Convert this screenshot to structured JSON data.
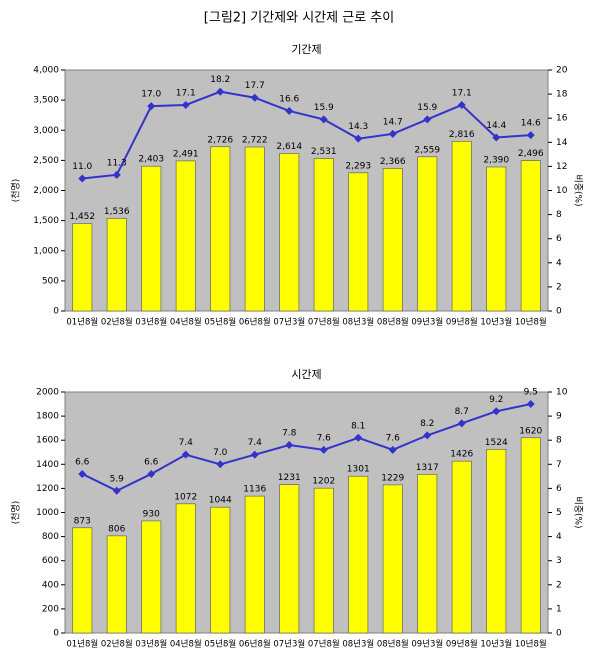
{
  "title": "[그림2] 기간제와 시간제 근로 추이",
  "chart_data": [
    {
      "type": "bar",
      "title": "기간제",
      "y_label": "(천명)",
      "y2_label": "비중(%)",
      "categories": [
        "01년8월",
        "02년8월",
        "03년8월",
        "04년8월",
        "05년8월",
        "06년8월",
        "07년3월",
        "07년8월",
        "08년3월",
        "08년8월",
        "09년3월",
        "09년8월",
        "10년3월",
        "10년8월"
      ],
      "series": [
        {
          "color": "#ffff00",
          "values": [
            1452,
            1536,
            2403,
            2491,
            2726,
            2722,
            2614,
            2531,
            2293,
            2366,
            2559,
            2816,
            2390,
            2496
          ],
          "value_labels": [
            "1,452",
            "1,536",
            "2,403",
            "2,491",
            "2,726",
            "2,722",
            "2,614",
            "2,531",
            "2,293",
            "2,366",
            "2,559",
            "2,816",
            "2,390",
            "2,496"
          ]
        },
        {
          "type": "line",
          "axis": "y2",
          "color": "#3333cc",
          "values": [
            11.0,
            11.3,
            17.0,
            17.1,
            18.2,
            17.7,
            16.6,
            15.9,
            14.3,
            14.7,
            15.9,
            17.1,
            14.4,
            14.6
          ],
          "value_labels": [
            "11.0",
            "11.3",
            "17.0",
            "17.1",
            "18.2",
            "17.7",
            "16.6",
            "15.9",
            "14.3",
            "14.7",
            "15.9",
            "17.1",
            "14.4",
            "14.6"
          ]
        }
      ],
      "ylim": [
        0,
        4000
      ],
      "yticks": [
        0,
        500,
        {
          "value": 1000,
          "label": "1,000"
        },
        {
          "value": 1500,
          "label": "1,500"
        },
        {
          "value": 2000,
          "label": "2,000"
        },
        {
          "value": 2500,
          "label": "2,500"
        },
        {
          "value": 3000,
          "label": "3,000"
        },
        {
          "value": 3500,
          "label": "3,500"
        },
        {
          "value": 4000,
          "label": "4,000"
        }
      ],
      "y2lim": [
        0,
        20
      ],
      "y2ticks": [
        0,
        2,
        4,
        6,
        8,
        10,
        12,
        14,
        16,
        18,
        20
      ]
    },
    {
      "type": "bar",
      "title": "시간제",
      "y_label": "(천명)",
      "y2_label": "비중(%)",
      "categories": [
        "01년8월",
        "02년8월",
        "03년8월",
        "04년8월",
        "05년8월",
        "06년8월",
        "07년3월",
        "07년8월",
        "08년3월",
        "08년8월",
        "09년3월",
        "09년8월",
        "10년3월",
        "10년8월"
      ],
      "series": [
        {
          "color": "#ffff00",
          "values": [
            873,
            806,
            930,
            1072,
            1044,
            1136,
            1231,
            1202,
            1301,
            1229,
            1317,
            1426,
            1524,
            1620
          ]
        },
        {
          "type": "line",
          "axis": "y2",
          "color": "#3333cc",
          "values": [
            6.6,
            5.9,
            6.6,
            7.4,
            7.0,
            7.4,
            7.8,
            7.6,
            8.1,
            7.6,
            8.2,
            8.7,
            9.2,
            9.5
          ],
          "value_labels": [
            "6.6",
            "5.9",
            "6.6",
            "7.4",
            "7.0",
            "7.4",
            "7.8",
            "7.6",
            "8.1",
            "7.6",
            "8.2",
            "8.7",
            "9.2",
            "9.5"
          ]
        }
      ],
      "ylim": [
        0,
        2000
      ],
      "yticks": [
        0,
        200,
        400,
        600,
        800,
        1000,
        1200,
        1400,
        1600,
        1800,
        2000
      ],
      "y2lim": [
        0,
        10
      ],
      "y2ticks": [
        0,
        1,
        2,
        3,
        4,
        5,
        6,
        7,
        8,
        9,
        10
      ]
    }
  ]
}
